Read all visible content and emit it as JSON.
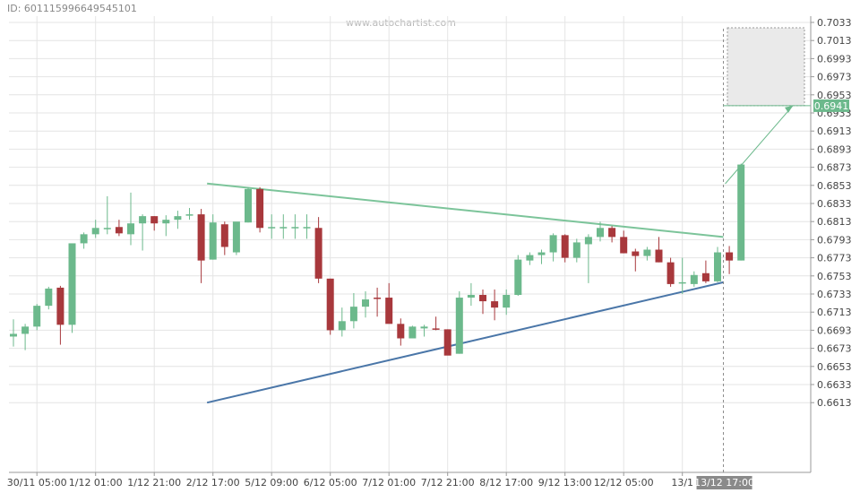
{
  "header": {
    "chart_id": "ID: 601115996649545101",
    "watermark": "www.autochartist.com"
  },
  "chart_data": {
    "type": "candlestick",
    "title": "",
    "xlabel": "",
    "ylabel": "",
    "ylim": [
      0.6608,
      0.7038
    ],
    "grid": true,
    "y_ticks": [
      "0.7033",
      "0.7013",
      "0.6993",
      "0.6973",
      "0.6953",
      "0.6933",
      "0.6913",
      "0.6893",
      "0.6873",
      "0.6853",
      "0.6833",
      "0.6813",
      "0.6793",
      "0.6773",
      "0.6753",
      "0.6733",
      "0.6713",
      "0.6693",
      "0.6673",
      "0.6653",
      "0.6633",
      "0.6613"
    ],
    "x_ticks": [
      {
        "label": "30/11 05:00",
        "index": 2
      },
      {
        "label": "1/12 01:00",
        "index": 7
      },
      {
        "label": "1/12 21:00",
        "index": 12
      },
      {
        "label": "2/12 17:00",
        "index": 17
      },
      {
        "label": "5/12 09:00",
        "index": 22
      },
      {
        "label": "6/12 05:00",
        "index": 27
      },
      {
        "label": "7/12 01:00",
        "index": 32
      },
      {
        "label": "7/12 21:00",
        "index": 37
      },
      {
        "label": "8/12 17:00",
        "index": 42
      },
      {
        "label": "9/12 13:00",
        "index": 47
      },
      {
        "label": "12/12 05:00",
        "index": 52
      },
      {
        "label": "13/1",
        "index": 57
      }
    ],
    "highlighted_x_label": "13/12 17:00",
    "colors": {
      "up": "#6cb98c",
      "down": "#a8383c",
      "resistance": "#7cc49a",
      "support": "#4a76a8",
      "forecast": "#6cb98c",
      "tag_bg": "#6cb98c",
      "time_tag_bg": "#8a8a8a"
    },
    "candles": [
      {
        "o": 0.6686,
        "h": 0.6705,
        "l": 0.6675,
        "c": 0.6689
      },
      {
        "o": 0.6689,
        "h": 0.67,
        "l": 0.6671,
        "c": 0.6697
      },
      {
        "o": 0.6697,
        "h": 0.6722,
        "l": 0.6693,
        "c": 0.672
      },
      {
        "o": 0.672,
        "h": 0.6741,
        "l": 0.6716,
        "c": 0.6739
      },
      {
        "o": 0.674,
        "h": 0.6742,
        "l": 0.6677,
        "c": 0.6699
      },
      {
        "o": 0.6699,
        "h": 0.6789,
        "l": 0.669,
        "c": 0.6789
      },
      {
        "o": 0.6789,
        "h": 0.6801,
        "l": 0.6783,
        "c": 0.6799
      },
      {
        "o": 0.6799,
        "h": 0.6815,
        "l": 0.6795,
        "c": 0.6806
      },
      {
        "o": 0.6806,
        "h": 0.6841,
        "l": 0.6799,
        "c": 0.6806
      },
      {
        "o": 0.6807,
        "h": 0.6815,
        "l": 0.6797,
        "c": 0.68
      },
      {
        "o": 0.6799,
        "h": 0.6845,
        "l": 0.6787,
        "c": 0.6811
      },
      {
        "o": 0.6811,
        "h": 0.6821,
        "l": 0.6781,
        "c": 0.6819
      },
      {
        "o": 0.6819,
        "h": 0.6819,
        "l": 0.6803,
        "c": 0.6811
      },
      {
        "o": 0.6811,
        "h": 0.682,
        "l": 0.6797,
        "c": 0.6815
      },
      {
        "o": 0.6815,
        "h": 0.6825,
        "l": 0.6805,
        "c": 0.6819
      },
      {
        "o": 0.6821,
        "h": 0.6828,
        "l": 0.6815,
        "c": 0.6821
      },
      {
        "o": 0.6821,
        "h": 0.6827,
        "l": 0.6745,
        "c": 0.677
      },
      {
        "o": 0.6771,
        "h": 0.6821,
        "l": 0.6771,
        "c": 0.6812
      },
      {
        "o": 0.681,
        "h": 0.6813,
        "l": 0.6776,
        "c": 0.6785
      },
      {
        "o": 0.6779,
        "h": 0.6812,
        "l": 0.6776,
        "c": 0.6813
      },
      {
        "o": 0.6812,
        "h": 0.6851,
        "l": 0.6812,
        "c": 0.6849
      },
      {
        "o": 0.6849,
        "h": 0.6851,
        "l": 0.6801,
        "c": 0.6806
      },
      {
        "o": 0.6807,
        "h": 0.6821,
        "l": 0.6794,
        "c": 0.6807
      },
      {
        "o": 0.6807,
        "h": 0.6821,
        "l": 0.6794,
        "c": 0.6807
      },
      {
        "o": 0.6807,
        "h": 0.6821,
        "l": 0.6794,
        "c": 0.6807
      },
      {
        "o": 0.6807,
        "h": 0.6821,
        "l": 0.6794,
        "c": 0.6807
      },
      {
        "o": 0.6806,
        "h": 0.6818,
        "l": 0.6745,
        "c": 0.675
      },
      {
        "o": 0.675,
        "h": 0.675,
        "l": 0.6688,
        "c": 0.6693
      },
      {
        "o": 0.6693,
        "h": 0.6718,
        "l": 0.6686,
        "c": 0.6703
      },
      {
        "o": 0.6703,
        "h": 0.6734,
        "l": 0.6695,
        "c": 0.6719
      },
      {
        "o": 0.6719,
        "h": 0.6736,
        "l": 0.6707,
        "c": 0.6727
      },
      {
        "o": 0.6729,
        "h": 0.674,
        "l": 0.6708,
        "c": 0.6728
      },
      {
        "o": 0.6729,
        "h": 0.6745,
        "l": 0.6701,
        "c": 0.67
      },
      {
        "o": 0.67,
        "h": 0.6706,
        "l": 0.6676,
        "c": 0.6684
      },
      {
        "o": 0.6684,
        "h": 0.6698,
        "l": 0.6684,
        "c": 0.6697
      },
      {
        "o": 0.6695,
        "h": 0.6699,
        "l": 0.6686,
        "c": 0.6697
      },
      {
        "o": 0.6695,
        "h": 0.6708,
        "l": 0.6693,
        "c": 0.6694
      },
      {
        "o": 0.6694,
        "h": 0.6694,
        "l": 0.6667,
        "c": 0.6665
      },
      {
        "o": 0.6667,
        "h": 0.6736,
        "l": 0.6667,
        "c": 0.6729
      },
      {
        "o": 0.6729,
        "h": 0.6745,
        "l": 0.672,
        "c": 0.6732
      },
      {
        "o": 0.6732,
        "h": 0.6738,
        "l": 0.6711,
        "c": 0.6725
      },
      {
        "o": 0.6725,
        "h": 0.6738,
        "l": 0.6704,
        "c": 0.6718
      },
      {
        "o": 0.6718,
        "h": 0.6738,
        "l": 0.671,
        "c": 0.6732
      },
      {
        "o": 0.6732,
        "h": 0.6776,
        "l": 0.6731,
        "c": 0.6771
      },
      {
        "o": 0.677,
        "h": 0.6779,
        "l": 0.6765,
        "c": 0.6776
      },
      {
        "o": 0.6776,
        "h": 0.6782,
        "l": 0.6766,
        "c": 0.6779
      },
      {
        "o": 0.6779,
        "h": 0.68,
        "l": 0.6769,
        "c": 0.6798
      },
      {
        "o": 0.6798,
        "h": 0.6799,
        "l": 0.6768,
        "c": 0.6773
      },
      {
        "o": 0.6773,
        "h": 0.6794,
        "l": 0.6768,
        "c": 0.679
      },
      {
        "o": 0.6788,
        "h": 0.6799,
        "l": 0.6745,
        "c": 0.6796
      },
      {
        "o": 0.6796,
        "h": 0.6813,
        "l": 0.6791,
        "c": 0.6806
      },
      {
        "o": 0.6806,
        "h": 0.6808,
        "l": 0.679,
        "c": 0.6796
      },
      {
        "o": 0.6796,
        "h": 0.6803,
        "l": 0.6778,
        "c": 0.6778
      },
      {
        "o": 0.678,
        "h": 0.6783,
        "l": 0.6758,
        "c": 0.6775
      },
      {
        "o": 0.6775,
        "h": 0.6785,
        "l": 0.677,
        "c": 0.6782
      },
      {
        "o": 0.6782,
        "h": 0.6796,
        "l": 0.6768,
        "c": 0.6768
      },
      {
        "o": 0.6768,
        "h": 0.6773,
        "l": 0.6741,
        "c": 0.6744
      },
      {
        "o": 0.6745,
        "h": 0.6773,
        "l": 0.6733,
        "c": 0.6746
      },
      {
        "o": 0.6744,
        "h": 0.6758,
        "l": 0.6741,
        "c": 0.6754
      },
      {
        "o": 0.6756,
        "h": 0.677,
        "l": 0.6745,
        "c": 0.6747
      },
      {
        "o": 0.6747,
        "h": 0.6785,
        "l": 0.6746,
        "c": 0.6779
      },
      {
        "o": 0.6779,
        "h": 0.6786,
        "l": 0.6755,
        "c": 0.677
      },
      {
        "o": 0.677,
        "h": 0.6877,
        "l": 0.677,
        "c": 0.6876
      }
    ],
    "resistance_line": {
      "start": {
        "index": 16.5,
        "y": 0.6855
      },
      "end": {
        "index": 60.5,
        "y": 0.6796
      }
    },
    "support_line": {
      "start": {
        "index": 16.5,
        "y": 0.6613
      },
      "end": {
        "index": 60.5,
        "y": 0.6746
      }
    },
    "forecast": {
      "from": {
        "index": 60.5,
        "y": 0.6795
      },
      "to": {
        "index": 66.6,
        "y": 0.6941
      }
    },
    "forecast_zone": {
      "y_top": 0.7033,
      "y_bottom": 0.6941
    },
    "target_value": "0.6941"
  }
}
